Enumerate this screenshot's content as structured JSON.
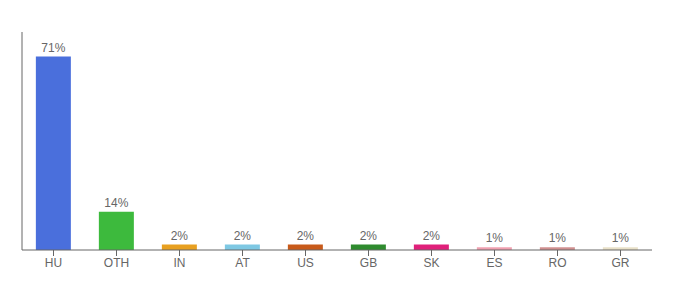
{
  "chart_data": {
    "type": "bar",
    "categories": [
      "HU",
      "OTH",
      "IN",
      "AT",
      "US",
      "GB",
      "SK",
      "ES",
      "RO",
      "GR"
    ],
    "values": [
      71,
      14,
      2,
      2,
      2,
      2,
      2,
      1,
      1,
      1
    ],
    "value_labels": [
      "71%",
      "14%",
      "2%",
      "2%",
      "2%",
      "2%",
      "2%",
      "1%",
      "1%",
      "1%"
    ],
    "colors": [
      "#4a6fdc",
      "#3dba3d",
      "#e8a020",
      "#7ec8e3",
      "#c85a1a",
      "#2e8b2e",
      "#e0207a",
      "#f0a0b0",
      "#d09090",
      "#e8e0c8"
    ],
    "ylim": [
      0,
      80
    ],
    "data_labels": true,
    "tick_labels": "x"
  }
}
